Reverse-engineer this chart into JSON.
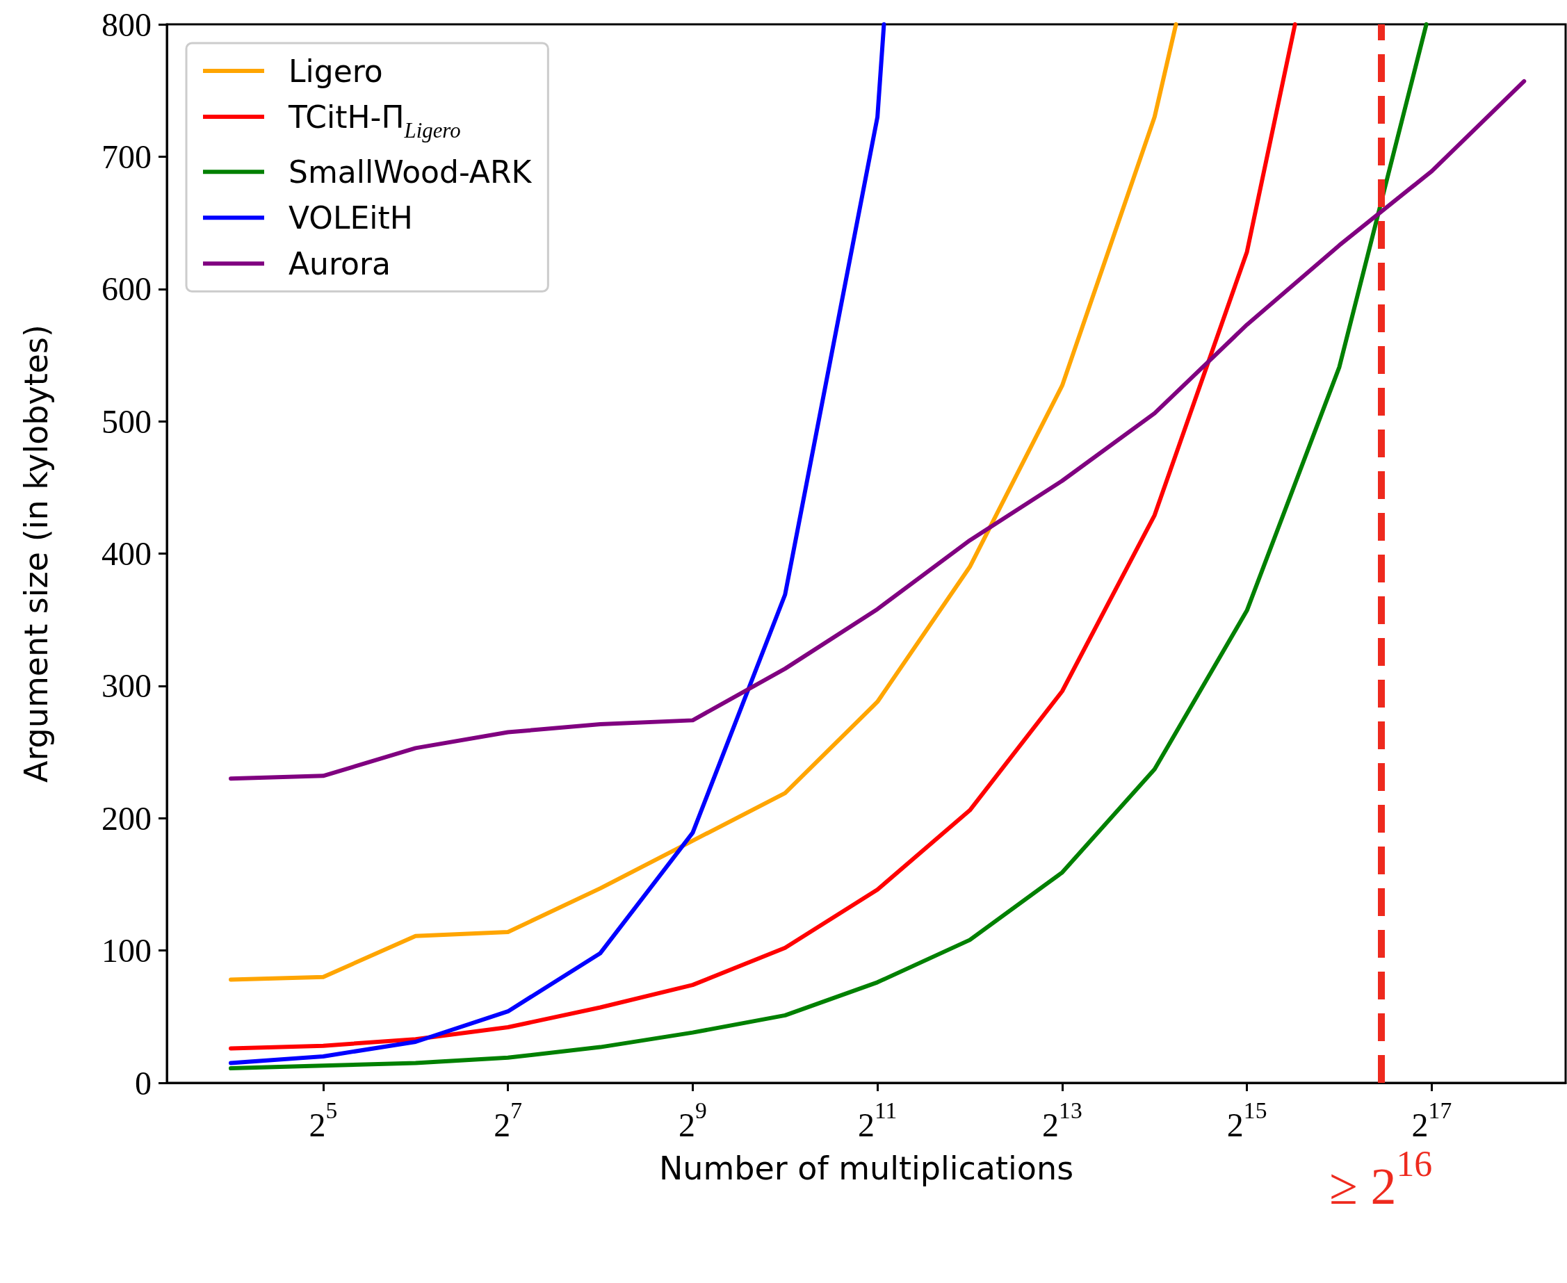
{
  "chart_data": {
    "type": "line",
    "xlabel": "Number of multiplications",
    "ylabel": "Argument size (in kylobytes)",
    "log": "x",
    "legend": "top left",
    "marker": "none",
    "line_style": "solid",
    "xlim": [
      9.9,
      358000
    ],
    "ylim": [
      0,
      800
    ],
    "xticks": [
      {
        "value": 32,
        "label": "2$^{5}$"
      },
      {
        "value": 128,
        "label": "2$^{7}$"
      },
      {
        "value": 512,
        "label": "2$^{9}$"
      },
      {
        "value": 2048,
        "label": "2$^{11}$"
      },
      {
        "value": 8192,
        "label": "2$^{13}$"
      },
      {
        "value": 32768,
        "label": "2$^{15}$"
      },
      {
        "value": 131072,
        "label": "2$^{17}$"
      }
    ],
    "yticks": [
      0,
      100,
      200,
      300,
      400,
      500,
      600,
      700,
      800
    ],
    "series": [
      {
        "name": "Ligero",
        "color": "#ffa500",
        "x": [
          16,
          32,
          64,
          128,
          256,
          512,
          1024,
          2048,
          4096,
          8192,
          16384,
          19240
        ],
        "values": [
          78,
          80,
          111,
          114,
          147,
          183,
          219,
          288,
          390,
          527,
          730,
          800
        ]
      },
      {
        "name": "TCitH-Π$_{Ligero}$",
        "color": "#ff0000",
        "x": [
          16,
          32,
          64,
          128,
          256,
          512,
          1024,
          2048,
          4096,
          8192,
          16384,
          32768,
          47000
        ],
        "values": [
          26,
          28,
          33,
          42,
          57,
          74,
          102,
          146,
          206,
          296,
          429,
          628,
          800
        ]
      },
      {
        "name": "SmallWood-ARK",
        "color": "#008000",
        "x": [
          16,
          32,
          64,
          128,
          256,
          512,
          1024,
          2048,
          4096,
          8192,
          16384,
          32768,
          65536,
          125900
        ],
        "values": [
          11,
          13,
          15,
          19,
          27,
          38,
          51,
          76,
          108,
          159,
          237,
          357,
          541,
          800
        ]
      },
      {
        "name": "VOLEitH",
        "color": "#0000ff",
        "x": [
          16,
          32,
          64,
          128,
          256,
          512,
          1024,
          2048,
          2150
        ],
        "values": [
          15,
          20,
          31,
          54,
          98,
          189,
          369,
          730,
          800
        ]
      },
      {
        "name": "Aurora",
        "color": "#800080",
        "x": [
          16,
          32,
          64,
          128,
          256,
          512,
          1024,
          2048,
          4096,
          8192,
          16384,
          32768,
          65536,
          131072,
          262144
        ],
        "values": [
          230,
          232,
          253,
          265,
          271,
          274,
          313,
          358,
          410,
          455,
          506,
          573,
          633,
          689,
          757
        ]
      }
    ],
    "ref_lines": [
      {
        "axis": "x",
        "value": 89500,
        "label": "≥ 2$^{16}$",
        "color": "#ee2a1e",
        "line_style": "dashed"
      }
    ]
  }
}
